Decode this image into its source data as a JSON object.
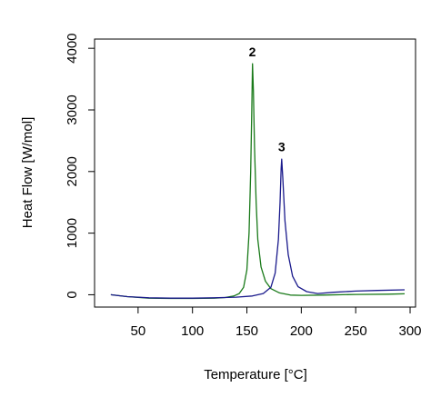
{
  "chart_data": {
    "type": "line",
    "title": "",
    "xlabel": "Temperature [°C]",
    "ylabel": "Heat Flow [W/mol]",
    "xlim": [
      10,
      305
    ],
    "ylim": [
      -200,
      4150
    ],
    "xticks": [
      50,
      100,
      150,
      200,
      250,
      300
    ],
    "yticks": [
      0,
      1000,
      2000,
      3000,
      4000
    ],
    "grid": false,
    "series": [
      {
        "color": "#1a7a1a",
        "points": [
          [
            25,
            0
          ],
          [
            40,
            -30
          ],
          [
            60,
            -55
          ],
          [
            80,
            -60
          ],
          [
            100,
            -60
          ],
          [
            120,
            -55
          ],
          [
            130,
            -45
          ],
          [
            138,
            -20
          ],
          [
            143,
            20
          ],
          [
            147,
            120
          ],
          [
            150,
            400
          ],
          [
            152,
            1000
          ],
          [
            153.5,
            2000
          ],
          [
            154.5,
            3000
          ],
          [
            155.2,
            3750
          ],
          [
            156,
            3300
          ],
          [
            157,
            2400
          ],
          [
            158.5,
            1500
          ],
          [
            160,
            900
          ],
          [
            163,
            450
          ],
          [
            167,
            220
          ],
          [
            172,
            100
          ],
          [
            180,
            30
          ],
          [
            190,
            -5
          ],
          [
            200,
            -10
          ],
          [
            220,
            -5
          ],
          [
            250,
            5
          ],
          [
            280,
            10
          ],
          [
            295,
            15
          ]
        ]
      },
      {
        "color": "#1a1a8c",
        "points": [
          [
            25,
            0
          ],
          [
            40,
            -30
          ],
          [
            60,
            -50
          ],
          [
            80,
            -55
          ],
          [
            100,
            -55
          ],
          [
            120,
            -50
          ],
          [
            140,
            -40
          ],
          [
            155,
            -20
          ],
          [
            165,
            20
          ],
          [
            172,
            120
          ],
          [
            176,
            350
          ],
          [
            179,
            900
          ],
          [
            180.5,
            1500
          ],
          [
            181.5,
            2050
          ],
          [
            182,
            2200
          ],
          [
            183,
            1900
          ],
          [
            185,
            1200
          ],
          [
            188,
            650
          ],
          [
            192,
            300
          ],
          [
            197,
            130
          ],
          [
            205,
            50
          ],
          [
            215,
            20
          ],
          [
            230,
            40
          ],
          [
            250,
            60
          ],
          [
            270,
            70
          ],
          [
            295,
            80
          ]
        ]
      }
    ],
    "annotations": [
      {
        "text": "2",
        "x": 155,
        "y": 3870
      },
      {
        "text": "3",
        "x": 182,
        "y": 2330
      }
    ]
  }
}
